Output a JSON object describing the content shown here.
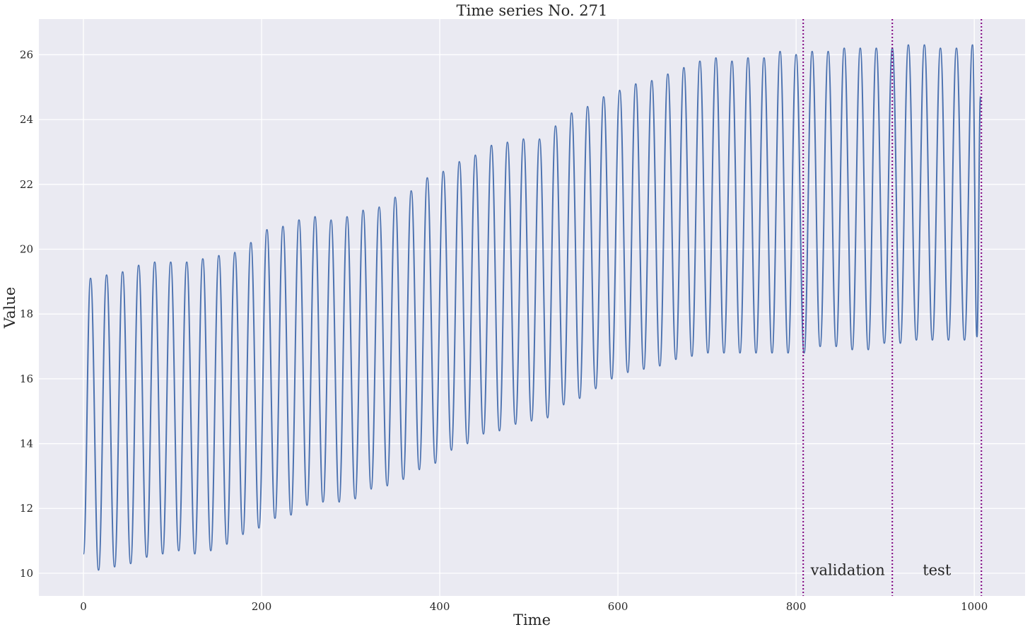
{
  "chart_data": {
    "type": "line",
    "title": "Time series No. 271",
    "xlabel": "Time",
    "ylabel": "Value",
    "xlim": [
      -50,
      1057
    ],
    "ylim": [
      9.3,
      27.1
    ],
    "xticks": [
      0,
      200,
      400,
      600,
      800,
      1000
    ],
    "yticks": [
      10,
      12,
      14,
      16,
      18,
      20,
      22,
      24,
      26
    ],
    "grid": true,
    "background_color": "#eaeaf2",
    "grid_color": "#ffffff",
    "line_color": "#4c72b0",
    "split_line_color": "#800080",
    "splits": [
      {
        "x": 808,
        "label": ""
      },
      {
        "x": 908,
        "label": "validation"
      },
      {
        "x": 1008,
        "label": "test"
      }
    ],
    "series": [
      {
        "period": 18,
        "start": {
          "x": 0,
          "y": 10.6
        },
        "end": {
          "x": 1007,
          "y": 24.7
        },
        "peaks": [
          [
            8,
            19.1
          ],
          [
            26,
            19.2
          ],
          [
            44,
            19.3
          ],
          [
            62,
            19.5
          ],
          [
            80,
            19.6
          ],
          [
            98,
            19.6
          ],
          [
            116,
            19.6
          ],
          [
            134,
            19.7
          ],
          [
            152,
            19.8
          ],
          [
            170,
            19.9
          ],
          [
            188,
            20.2
          ],
          [
            206,
            20.6
          ],
          [
            224,
            20.7
          ],
          [
            242,
            20.9
          ],
          [
            260,
            21.0
          ],
          [
            278,
            20.9
          ],
          [
            296,
            21.0
          ],
          [
            314,
            21.2
          ],
          [
            332,
            21.3
          ],
          [
            350,
            21.6
          ],
          [
            368,
            21.8
          ],
          [
            386,
            22.2
          ],
          [
            404,
            22.4
          ],
          [
            422,
            22.7
          ],
          [
            440,
            22.9
          ],
          [
            458,
            23.2
          ],
          [
            476,
            23.3
          ],
          [
            494,
            23.4
          ],
          [
            512,
            23.4
          ],
          [
            530,
            23.8
          ],
          [
            548,
            24.2
          ],
          [
            566,
            24.4
          ],
          [
            584,
            24.7
          ],
          [
            602,
            24.9
          ],
          [
            620,
            25.1
          ],
          [
            638,
            25.2
          ],
          [
            656,
            25.4
          ],
          [
            674,
            25.6
          ],
          [
            692,
            25.8
          ],
          [
            710,
            25.9
          ],
          [
            728,
            25.8
          ],
          [
            746,
            25.9
          ],
          [
            764,
            25.9
          ],
          [
            782,
            26.1
          ],
          [
            800,
            26.0
          ],
          [
            818,
            26.1
          ],
          [
            836,
            26.1
          ],
          [
            854,
            26.2
          ],
          [
            872,
            26.2
          ],
          [
            890,
            26.2
          ],
          [
            908,
            26.2
          ],
          [
            926,
            26.3
          ],
          [
            944,
            26.3
          ],
          [
            962,
            26.2
          ],
          [
            980,
            26.2
          ],
          [
            998,
            26.3
          ]
        ],
        "troughs": [
          [
            17,
            10.1
          ],
          [
            35,
            10.2
          ],
          [
            53,
            10.3
          ],
          [
            71,
            10.5
          ],
          [
            89,
            10.6
          ],
          [
            107,
            10.7
          ],
          [
            125,
            10.6
          ],
          [
            143,
            10.7
          ],
          [
            161,
            10.9
          ],
          [
            179,
            11.2
          ],
          [
            197,
            11.4
          ],
          [
            215,
            11.7
          ],
          [
            233,
            11.8
          ],
          [
            251,
            12.1
          ],
          [
            269,
            12.2
          ],
          [
            287,
            12.2
          ],
          [
            305,
            12.3
          ],
          [
            323,
            12.6
          ],
          [
            341,
            12.7
          ],
          [
            359,
            12.9
          ],
          [
            377,
            13.2
          ],
          [
            395,
            13.4
          ],
          [
            413,
            13.8
          ],
          [
            431,
            14.0
          ],
          [
            449,
            14.3
          ],
          [
            467,
            14.4
          ],
          [
            485,
            14.6
          ],
          [
            503,
            14.7
          ],
          [
            521,
            14.8
          ],
          [
            539,
            15.2
          ],
          [
            557,
            15.4
          ],
          [
            575,
            15.7
          ],
          [
            593,
            16.0
          ],
          [
            611,
            16.2
          ],
          [
            629,
            16.3
          ],
          [
            647,
            16.4
          ],
          [
            665,
            16.6
          ],
          [
            683,
            16.7
          ],
          [
            701,
            16.8
          ],
          [
            719,
            16.8
          ],
          [
            737,
            16.8
          ],
          [
            755,
            16.8
          ],
          [
            773,
            16.8
          ],
          [
            791,
            16.8
          ],
          [
            809,
            16.8
          ],
          [
            827,
            17.0
          ],
          [
            845,
            17.0
          ],
          [
            863,
            16.9
          ],
          [
            881,
            16.9
          ],
          [
            899,
            17.1
          ],
          [
            917,
            17.1
          ],
          [
            935,
            17.2
          ],
          [
            953,
            17.2
          ],
          [
            971,
            17.2
          ],
          [
            989,
            17.2
          ],
          [
            1003,
            17.3
          ]
        ]
      }
    ]
  }
}
